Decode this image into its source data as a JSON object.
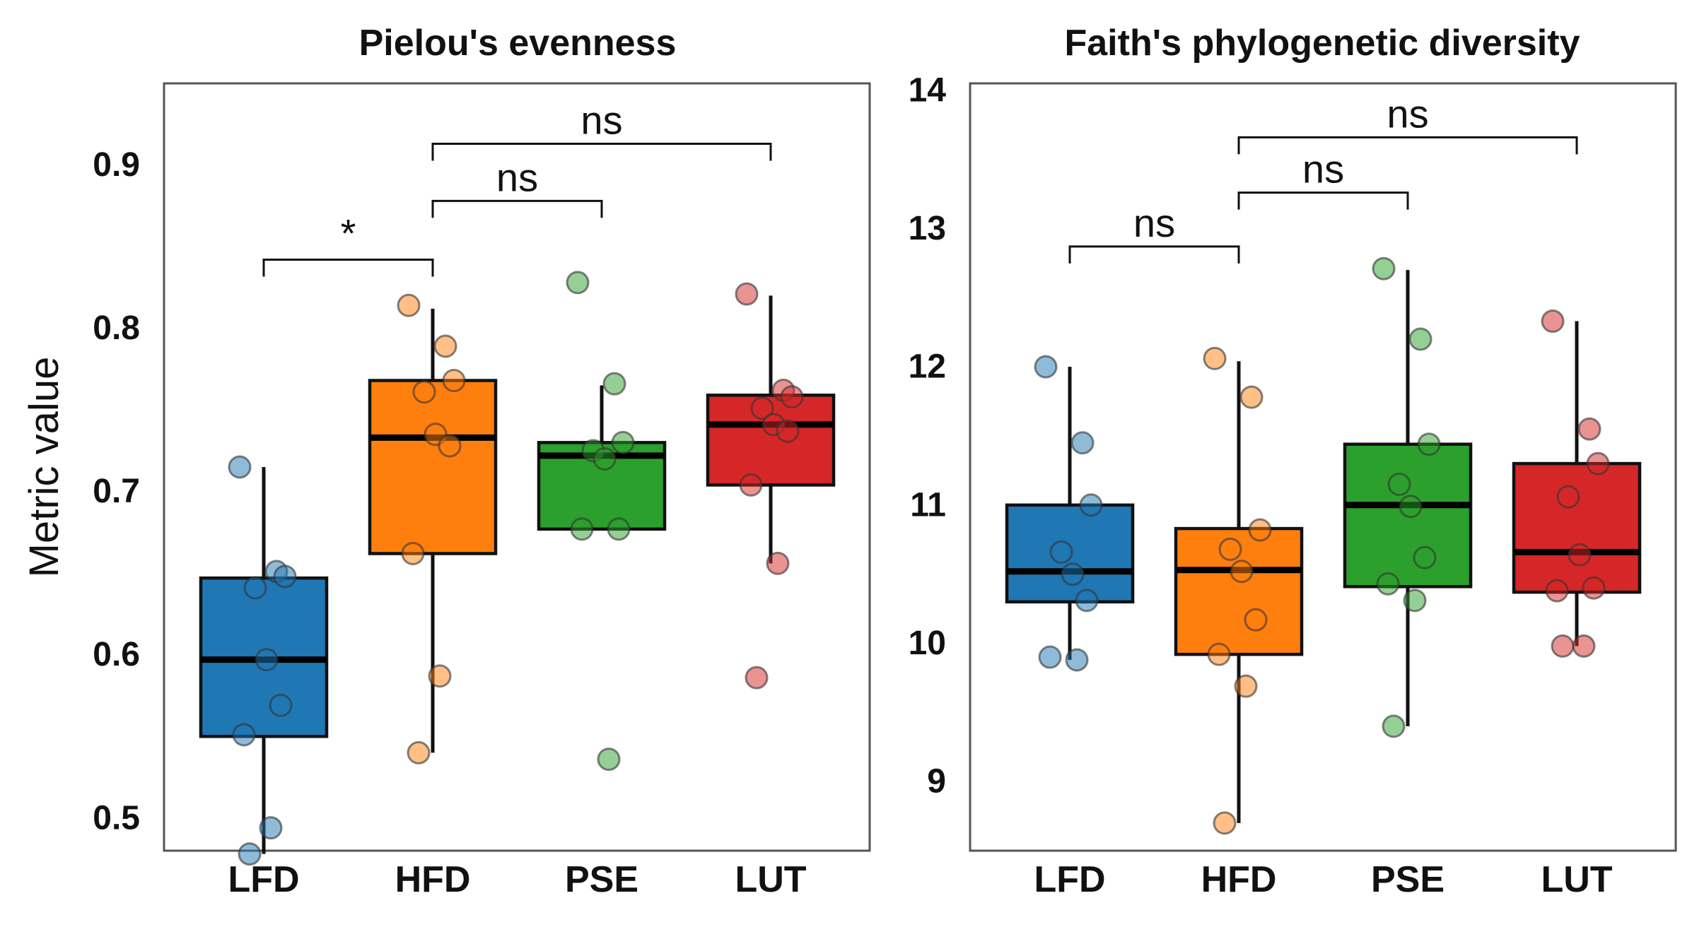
{
  "chart_data": [
    {
      "type": "box",
      "title": "Pielou's evenness",
      "ylabel": "Metric value",
      "xlabel": "",
      "ylim": [
        0.48,
        0.95
      ],
      "yticks": [
        0.5,
        0.6,
        0.7,
        0.8,
        0.9
      ],
      "categories": [
        "LFD",
        "HFD",
        "PSE",
        "LUT"
      ],
      "colors": [
        "#1f77b4",
        "#ff7f0e",
        "#2ca02c",
        "#d62728"
      ],
      "boxes": [
        {
          "name": "LFD",
          "whisker_low": 0.478,
          "q1": 0.55,
          "median": 0.597,
          "q3": 0.647,
          "whisker_high": 0.715
        },
        {
          "name": "HFD",
          "whisker_low": 0.54,
          "q1": 0.662,
          "median": 0.733,
          "q3": 0.768,
          "whisker_high": 0.812
        },
        {
          "name": "PSE",
          "whisker_low": 0.677,
          "q1": 0.677,
          "median": 0.722,
          "q3": 0.73,
          "whisker_high": 0.765
        },
        {
          "name": "LUT",
          "whisker_low": 0.656,
          "q1": 0.704,
          "median": 0.741,
          "q3": 0.759,
          "whisker_high": 0.82
        }
      ],
      "points": [
        {
          "group": "LFD",
          "values": [
            0.715,
            0.651,
            0.648,
            0.641,
            0.597,
            0.569,
            0.551,
            0.494,
            0.478
          ]
        },
        {
          "group": "HFD",
          "values": [
            0.814,
            0.789,
            0.768,
            0.761,
            0.735,
            0.728,
            0.662,
            0.587,
            0.54
          ]
        },
        {
          "group": "PSE",
          "values": [
            0.828,
            0.766,
            0.73,
            0.725,
            0.72,
            0.677,
            0.677,
            0.536
          ]
        },
        {
          "group": "LUT",
          "values": [
            0.821,
            0.762,
            0.758,
            0.751,
            0.741,
            0.737,
            0.704,
            0.656,
            0.586
          ]
        }
      ],
      "significance": [
        {
          "from": "LFD",
          "to": "HFD",
          "label": "*",
          "y": 0.842
        },
        {
          "from": "HFD",
          "to": "PSE",
          "label": "ns",
          "y": 0.878
        },
        {
          "from": "HFD",
          "to": "LUT",
          "label": "ns",
          "y": 0.913
        }
      ]
    },
    {
      "type": "box",
      "title": "Faith's phylogenetic diversity",
      "ylabel": "",
      "xlabel": "",
      "ylim": [
        8.5,
        14.05
      ],
      "yticks": [
        9,
        10,
        11,
        12,
        13,
        14
      ],
      "categories": [
        "LFD",
        "HFD",
        "PSE",
        "LUT"
      ],
      "colors": [
        "#1f77b4",
        "#ff7f0e",
        "#2ca02c",
        "#d62728"
      ],
      "boxes": [
        {
          "name": "LFD",
          "whisker_low": 9.88,
          "q1": 10.3,
          "median": 10.52,
          "q3": 11.0,
          "whisker_high": 12.0
        },
        {
          "name": "HFD",
          "whisker_low": 8.7,
          "q1": 9.92,
          "median": 10.53,
          "q3": 10.83,
          "whisker_high": 12.04
        },
        {
          "name": "PSE",
          "whisker_low": 9.4,
          "q1": 10.41,
          "median": 11.0,
          "q3": 11.44,
          "whisker_high": 12.7
        },
        {
          "name": "LUT",
          "whisker_low": 9.98,
          "q1": 10.37,
          "median": 10.66,
          "q3": 11.3,
          "whisker_high": 12.33
        }
      ],
      "points": [
        {
          "group": "LFD",
          "values": [
            12.0,
            11.45,
            11.0,
            10.66,
            10.5,
            10.31,
            9.9,
            9.88
          ]
        },
        {
          "group": "HFD",
          "values": [
            12.06,
            11.78,
            10.82,
            10.68,
            10.52,
            10.17,
            9.92,
            9.69,
            8.7
          ]
        },
        {
          "group": "PSE",
          "values": [
            12.71,
            12.2,
            11.44,
            11.15,
            10.99,
            10.62,
            10.43,
            10.31,
            9.4
          ]
        },
        {
          "group": "LUT",
          "values": [
            12.33,
            11.55,
            11.3,
            11.06,
            10.64,
            10.4,
            10.38,
            9.98,
            9.98
          ]
        }
      ],
      "significance": [
        {
          "from": "LFD",
          "to": "HFD",
          "label": "ns",
          "y": 12.87
        },
        {
          "from": "HFD",
          "to": "PSE",
          "label": "ns",
          "y": 13.26
        },
        {
          "from": "HFD",
          "to": "LUT",
          "label": "ns",
          "y": 13.66
        }
      ]
    }
  ]
}
